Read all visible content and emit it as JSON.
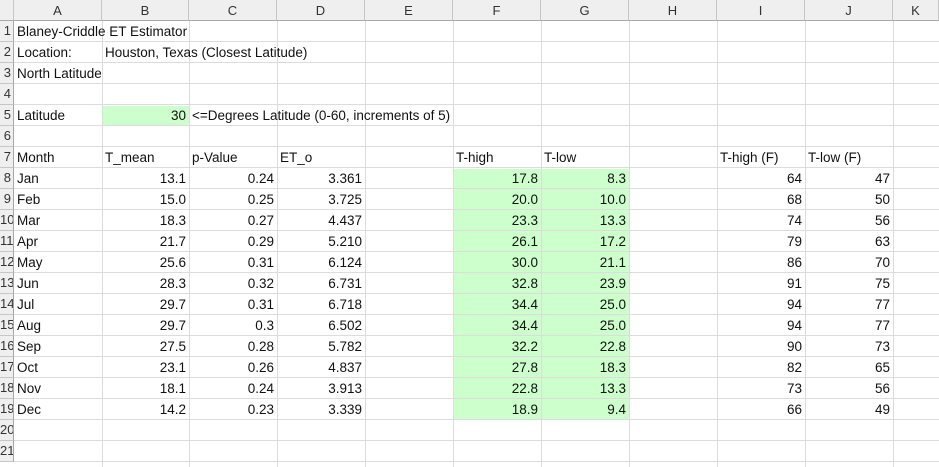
{
  "columns": [
    "A",
    "B",
    "C",
    "D",
    "E",
    "F",
    "G",
    "H",
    "I",
    "J",
    "K"
  ],
  "rows": [
    "1",
    "2",
    "3",
    "4",
    "5",
    "6",
    "7",
    "8",
    "9",
    "10",
    "11",
    "12",
    "13",
    "14",
    "15",
    "16",
    "17",
    "18",
    "19",
    "20",
    "21"
  ],
  "cells": {
    "title": "Blaney-Criddle ET Estimator",
    "location_label": "Location:",
    "location_value": "Houston, Texas (Closest Latitude)",
    "north_latitude": "North Latitude",
    "latitude_label": "Latitude",
    "latitude_value": "30",
    "latitude_note": "<=Degrees Latitude (0-60, increments of 5)"
  },
  "headers": {
    "month": "Month",
    "t_mean": "T_mean",
    "p_value": "p-Value",
    "et_o": "ET_o",
    "t_high": "T-high",
    "t_low": "T-low",
    "t_high_f": "T-high (F)",
    "t_low_f": "T-low (F)"
  },
  "table": [
    {
      "month": "Jan",
      "t_mean": "13.1",
      "p": "0.24",
      "et": "3.361",
      "th": "17.8",
      "tl": "8.3",
      "thf": "64",
      "tlf": "47"
    },
    {
      "month": "Feb",
      "t_mean": "15.0",
      "p": "0.25",
      "et": "3.725",
      "th": "20.0",
      "tl": "10.0",
      "thf": "68",
      "tlf": "50"
    },
    {
      "month": "Mar",
      "t_mean": "18.3",
      "p": "0.27",
      "et": "4.437",
      "th": "23.3",
      "tl": "13.3",
      "thf": "74",
      "tlf": "56"
    },
    {
      "month": "Apr",
      "t_mean": "21.7",
      "p": "0.29",
      "et": "5.210",
      "th": "26.1",
      "tl": "17.2",
      "thf": "79",
      "tlf": "63"
    },
    {
      "month": "May",
      "t_mean": "25.6",
      "p": "0.31",
      "et": "6.124",
      "th": "30.0",
      "tl": "21.1",
      "thf": "86",
      "tlf": "70"
    },
    {
      "month": "Jun",
      "t_mean": "28.3",
      "p": "0.32",
      "et": "6.731",
      "th": "32.8",
      "tl": "23.9",
      "thf": "91",
      "tlf": "75"
    },
    {
      "month": "Jul",
      "t_mean": "29.7",
      "p": "0.31",
      "et": "6.718",
      "th": "34.4",
      "tl": "25.0",
      "thf": "94",
      "tlf": "77"
    },
    {
      "month": "Aug",
      "t_mean": "29.7",
      "p": "0.3",
      "et": "6.502",
      "th": "34.4",
      "tl": "25.0",
      "thf": "94",
      "tlf": "77"
    },
    {
      "month": "Sep",
      "t_mean": "27.5",
      "p": "0.28",
      "et": "5.782",
      "th": "32.2",
      "tl": "22.8",
      "thf": "90",
      "tlf": "73"
    },
    {
      "month": "Oct",
      "t_mean": "23.1",
      "p": "0.26",
      "et": "4.837",
      "th": "27.8",
      "tl": "18.3",
      "thf": "82",
      "tlf": "65"
    },
    {
      "month": "Nov",
      "t_mean": "18.1",
      "p": "0.24",
      "et": "3.913",
      "th": "22.8",
      "tl": "13.3",
      "thf": "73",
      "tlf": "56"
    },
    {
      "month": "Dec",
      "t_mean": "14.2",
      "p": "0.23",
      "et": "3.339",
      "th": "18.9",
      "tl": "9.4",
      "thf": "66",
      "tlf": "49"
    }
  ],
  "colors": {
    "input_fill": "#ccffcc",
    "header_bg": "#efefef",
    "gridline": "#dcdcdc"
  }
}
